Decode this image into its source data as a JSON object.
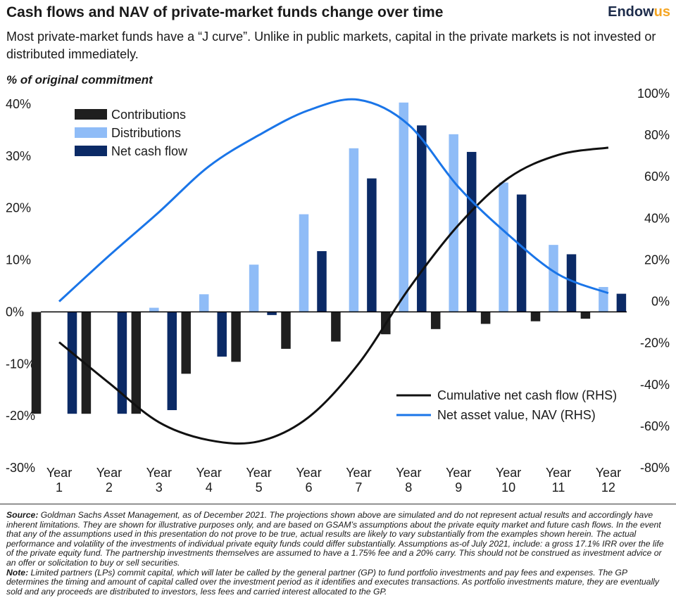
{
  "header": {
    "title": "Cash flows and NAV of private-market funds change over time",
    "brand_prefix": "Endow",
    "brand_suffix": "us",
    "subtitle": "Most private-market funds have a “J curve”. Unlike in public markets, capital in the private markets is not invested or distributed immediately."
  },
  "colors": {
    "contributions": "#1f1f1f",
    "distributions": "#8fbcf7",
    "net_cash_flow": "#0b2a66",
    "cumulative": "#111111",
    "nav": "#1a75e8",
    "brand_accent": "#f5a623"
  },
  "chart_data": {
    "type": "bar",
    "ylabel": "% of original commitment",
    "ylim": [
      -30,
      40
    ],
    "y_ticks": [
      "40%",
      "30%",
      "20%",
      "10%",
      "0%",
      "-10%",
      "-20%",
      "-30%"
    ],
    "y2lim": [
      -80,
      100
    ],
    "y2_ticks": [
      "100%",
      "80%",
      "60%",
      "40%",
      "20%",
      "0%",
      "-20%",
      "-40%",
      "-60%",
      "-80%"
    ],
    "categories": [
      [
        "Year",
        "1"
      ],
      [
        "Year",
        "2"
      ],
      [
        "Year",
        "3"
      ],
      [
        "Year",
        "4"
      ],
      [
        "Year",
        "5"
      ],
      [
        "Year",
        "6"
      ],
      [
        "Year",
        "7"
      ],
      [
        "Year",
        "8"
      ],
      [
        "Year",
        "9"
      ],
      [
        "Year",
        "10"
      ],
      [
        "Year",
        "11"
      ],
      [
        "Year",
        "12"
      ]
    ],
    "series": [
      {
        "name": "Contributions",
        "values": [
          -19.6,
          -19.6,
          -19.6,
          -11.9,
          -9.6,
          -7.1,
          -5.7,
          -4.3,
          -3.3,
          -2.3,
          -1.8,
          -1.3
        ]
      },
      {
        "name": "Distributions",
        "values": [
          0,
          0,
          0.8,
          3.4,
          9.1,
          18.8,
          31.5,
          40.3,
          34.2,
          24.9,
          12.9,
          4.8
        ]
      },
      {
        "name": "Net cash flow",
        "values": [
          -19.6,
          -19.6,
          -18.9,
          -8.6,
          -0.6,
          11.7,
          25.7,
          35.9,
          30.8,
          22.6,
          11.1,
          3.5
        ]
      }
    ],
    "lines": [
      {
        "name": "Cumulative net cash flow (RHS)",
        "axis": "right",
        "x": [
          1,
          2,
          3,
          4,
          5,
          6,
          7,
          8,
          9,
          10,
          11,
          12
        ],
        "values": [
          -19.6,
          -39.2,
          -58.1,
          -66.7,
          -67.3,
          -55.6,
          -29.9,
          6,
          36.8,
          59.4,
          70.5,
          74
        ]
      },
      {
        "name": "Net asset value, NAV (RHS)",
        "axis": "right",
        "x": [
          1,
          2,
          3,
          4,
          5,
          6,
          7,
          8,
          9,
          10,
          11,
          12
        ],
        "values": [
          0,
          22,
          43,
          65,
          80,
          92,
          97,
          85,
          55,
          32,
          13,
          4
        ]
      }
    ],
    "legend_bars": [
      "Contributions",
      "Distributions",
      "Net cash flow"
    ],
    "legend_lines": [
      "Cumulative net cash flow (RHS)",
      "Net asset value, NAV (RHS)"
    ]
  },
  "footer": {
    "source_label": "Source:",
    "source_text": " Goldman Sachs Asset Management, as of December 2021. The projections shown above are simulated and do not represent actual results and accordingly have inherent limitations. They are shown for illustrative purposes only, and are based on GSAM’s assumptions about the private equity market and future cash flows. In the event that any of the assumptions used in this presentation do not prove to be true, actual results are likely to vary substantially from the examples shown herein. The actual performance and volatility of the investments of individual private equity funds could differ substantially. Assumptions as-of July 2021, include: a gross 17.1% IRR over the life of the private equity fund. The partnership investments themselves are assumed to have a 1.75% fee and a 20% carry. This should not be construed as investment advice or an offer or solicitation to buy or sell securities.",
    "note_label": "Note:",
    "note_text": " Limited partners (LPs) commit capital, which will later be called by the general partner (GP) to fund portfolio investments and pay fees and expenses. The GP determines the timing and amount of capital called over the investment period as it identifies and executes transactions. As portfolio investments mature, they are eventually sold and any proceeds are distributed to investors, less fees and carried interest allocated to the GP."
  }
}
